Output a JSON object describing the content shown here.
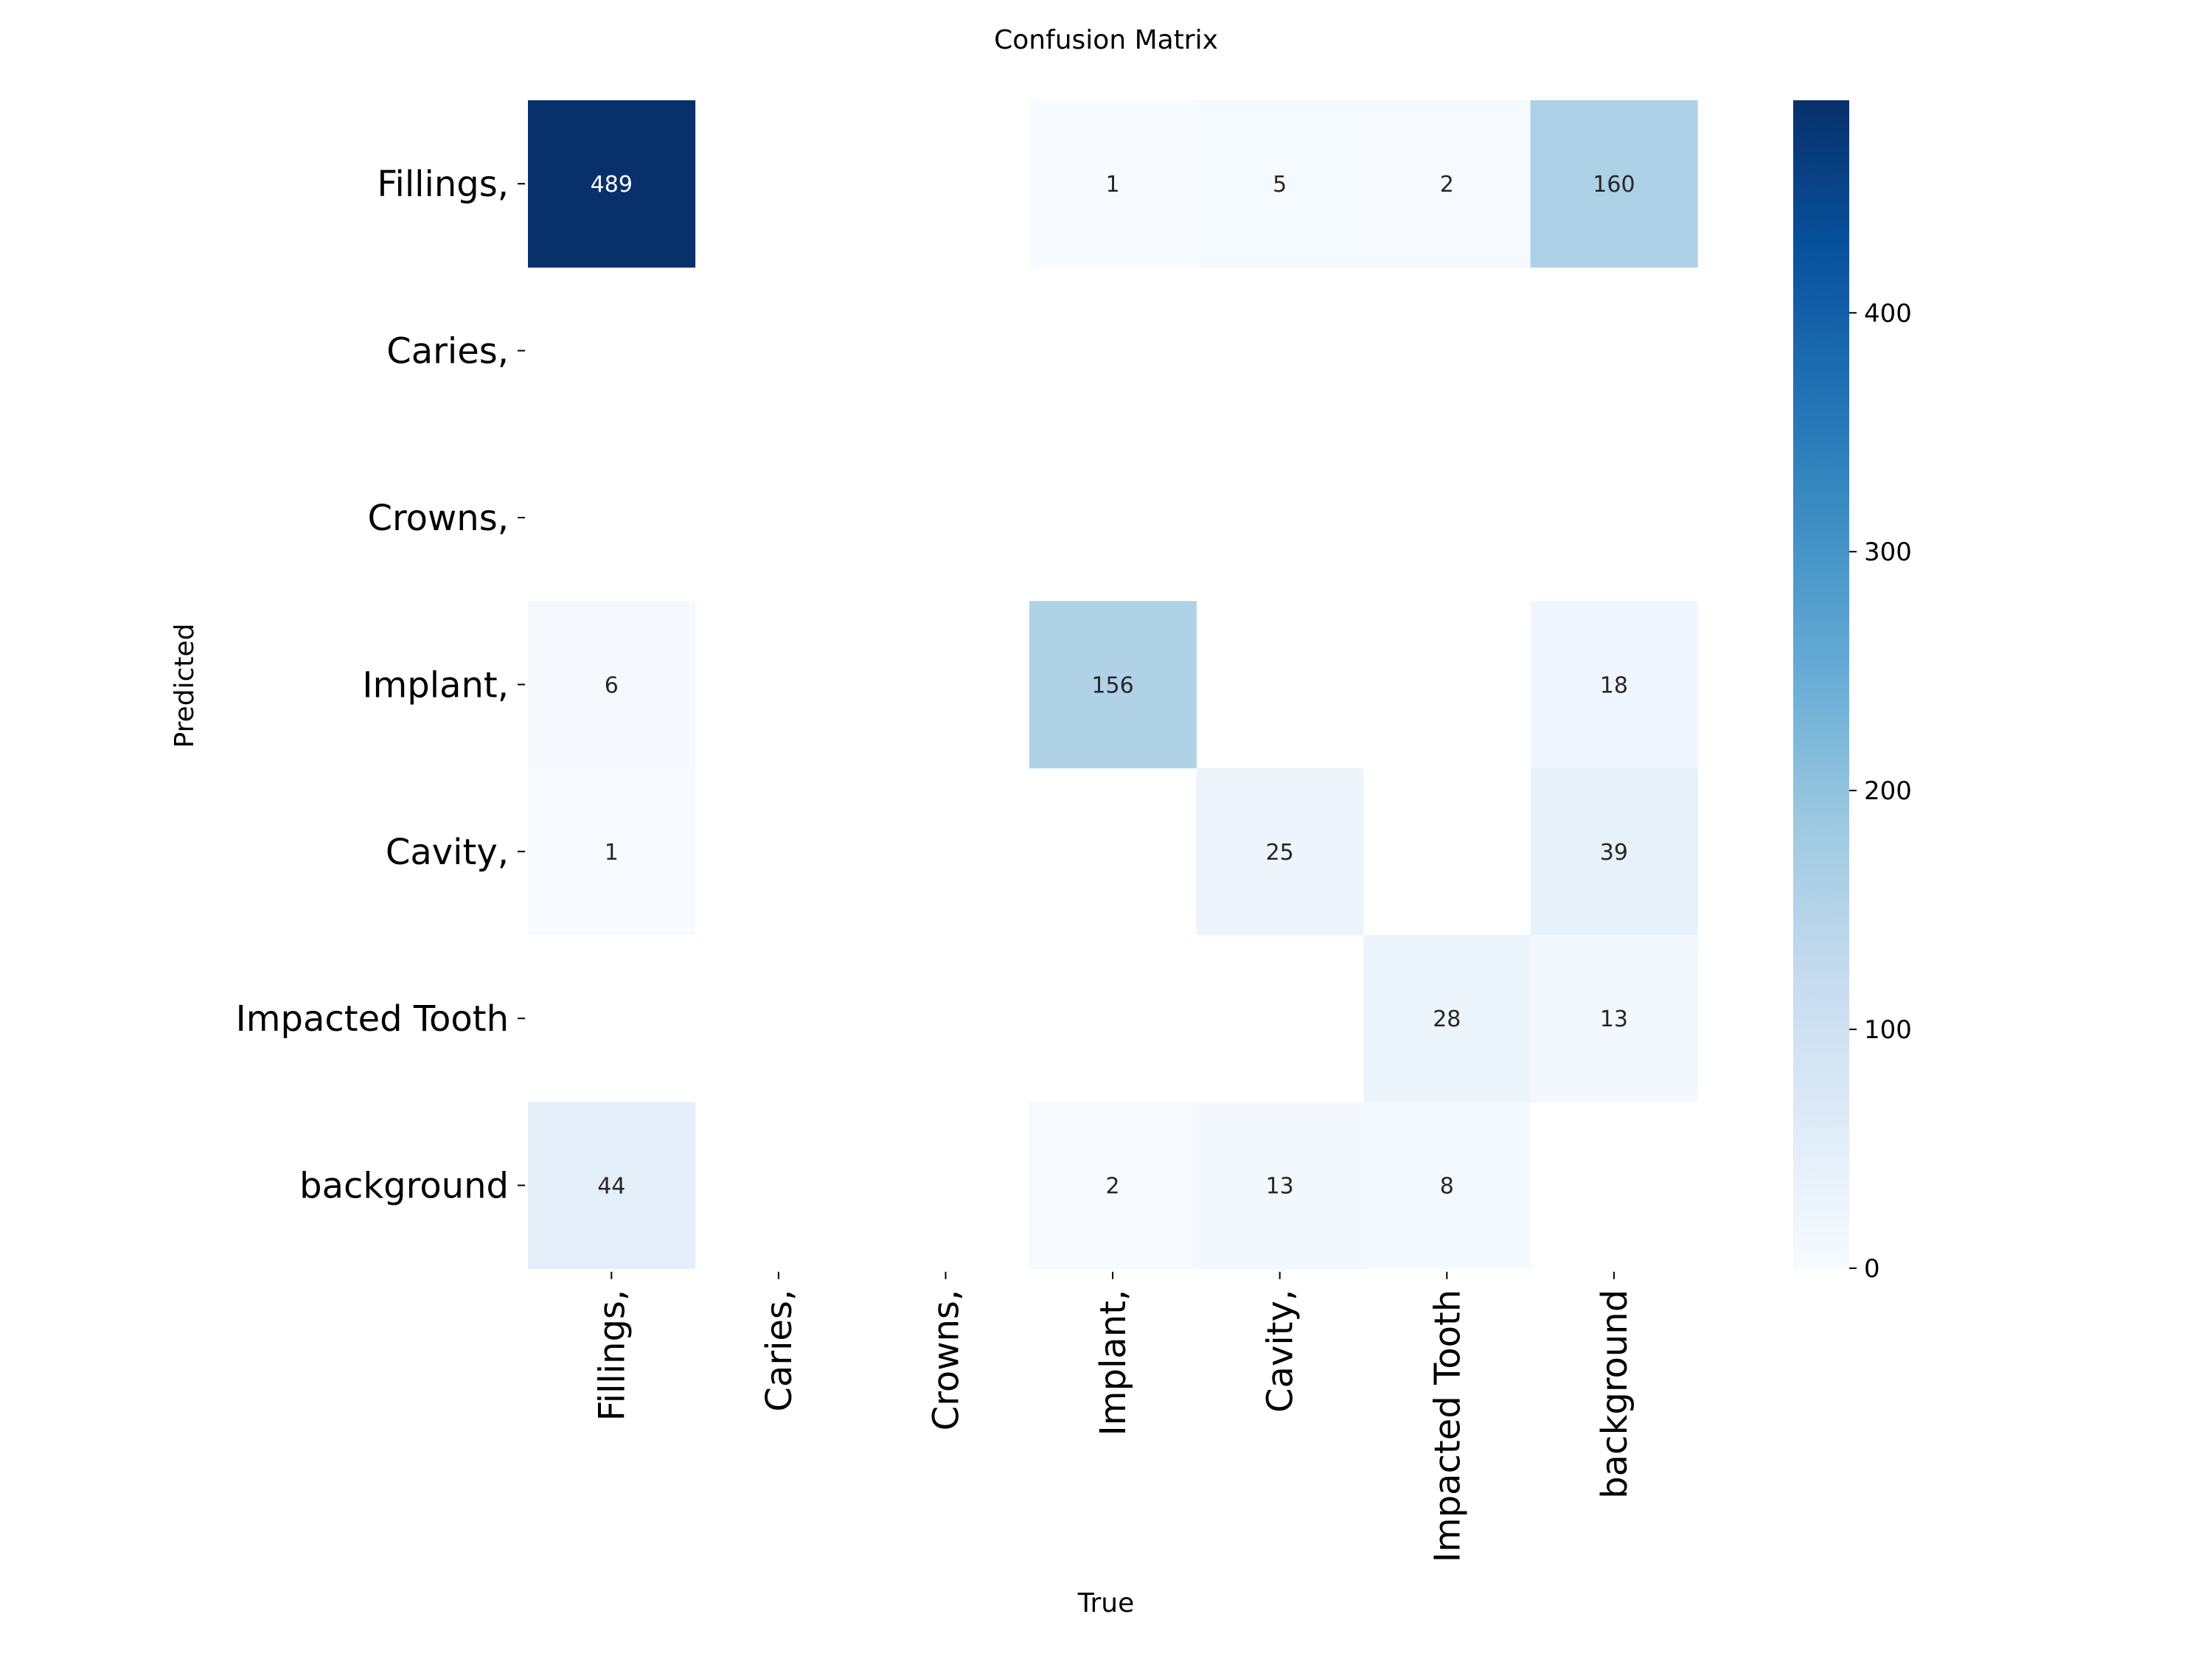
{
  "chart_data": {
    "type": "heatmap",
    "title": "Confusion Matrix",
    "xlabel": "True",
    "ylabel": "Predicted",
    "x_categories": [
      "Fillings,",
      "Caries,",
      "Crowns,",
      "Implant,",
      "Cavity,",
      "Impacted Tooth",
      "background"
    ],
    "y_categories": [
      "Fillings,",
      "Caries,",
      "Crowns,",
      "Implant,",
      "Cavity,",
      "Impacted Tooth",
      "background"
    ],
    "values": [
      [
        489,
        null,
        null,
        1,
        5,
        2,
        160
      ],
      [
        null,
        null,
        null,
        null,
        null,
        null,
        null
      ],
      [
        null,
        null,
        null,
        null,
        null,
        null,
        null
      ],
      [
        6,
        null,
        null,
        156,
        null,
        null,
        18
      ],
      [
        1,
        null,
        null,
        null,
        25,
        null,
        39
      ],
      [
        null,
        null,
        null,
        null,
        null,
        28,
        13
      ],
      [
        44,
        null,
        null,
        2,
        13,
        8,
        null
      ]
    ],
    "colorbar": {
      "min": 0,
      "max": 489,
      "ticks": [
        0,
        100,
        200,
        300,
        400
      ],
      "colormap": "Blues"
    }
  }
}
